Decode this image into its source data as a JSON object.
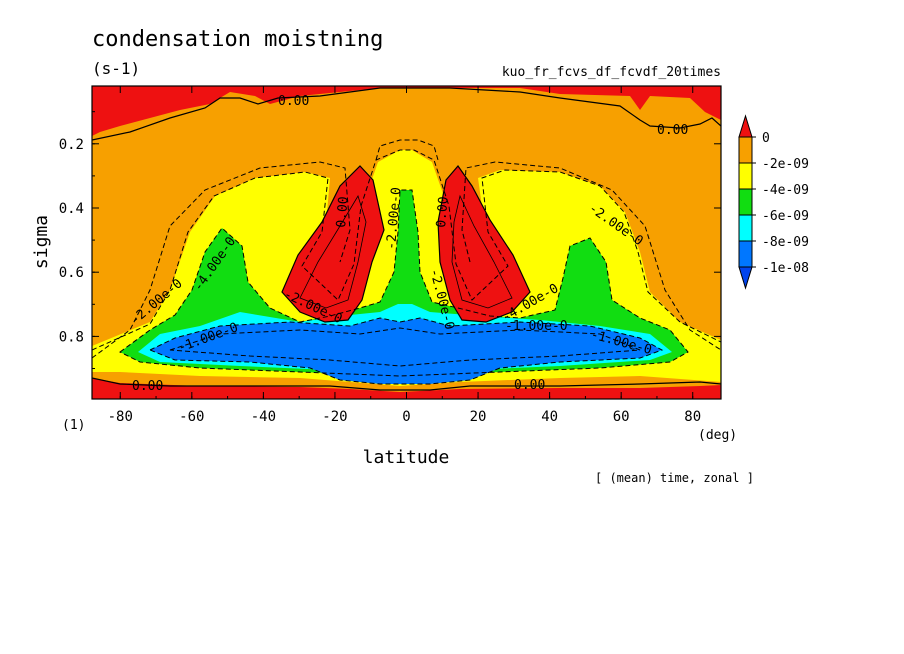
{
  "chart_data": {
    "type": "heatmap",
    "title": "condensation moistning",
    "units": "(s-1)",
    "experiment": "kuo_fr_fcvs_df_fcvdf_20times",
    "xlabel": "latitude",
    "xunit": "(deg)",
    "ylabel": "sigma",
    "yunit": "(1)",
    "footer": "[ (mean) time, zonal ]",
    "xlim": [
      -87.9,
      87.9
    ],
    "ylim": [
      0.995,
      0.02
    ],
    "x_ticks": [
      -80,
      -60,
      -40,
      -20,
      0,
      20,
      40,
      60,
      80
    ],
    "y_ticks": [
      0.2,
      0.4,
      0.6,
      0.8
    ],
    "x_tick_labels": [
      "-80",
      "-60",
      "-40",
      "-20",
      "0",
      "20",
      "40",
      "60",
      "80"
    ],
    "y_tick_labels": [
      "0.2",
      "0.4",
      "0.6",
      "0.8"
    ],
    "colorbar": {
      "labels": [
        "0",
        "-2e-09",
        "-4e-09",
        "-6e-09",
        "-8e-09",
        "-1e-08"
      ],
      "colors": [
        "#ee1111",
        "#f7a000",
        "#ffff00",
        "#11dd11",
        "#00ffff",
        "#0077ff",
        "#0044ee"
      ]
    },
    "contour_labels": [
      "0.00",
      "0.00",
      "0.00",
      "0.00",
      "0.00",
      "0.00",
      "-2.00e-0",
      "-2.00e-0",
      "-2.00e-0",
      "-4.00e-0",
      "-4.00e-0",
      "-1.00e-0",
      "-1.00e-0",
      "-1.00e-0",
      "-2.00e-0",
      "-2.00e-0"
    ],
    "colors": {
      "red": "#ee1111",
      "orange": "#f7a000",
      "yellow": "#ffff00",
      "green": "#11dd11",
      "cyan": "#00ffff",
      "blue": "#0077ff",
      "darkblue": "#0044ee"
    }
  }
}
